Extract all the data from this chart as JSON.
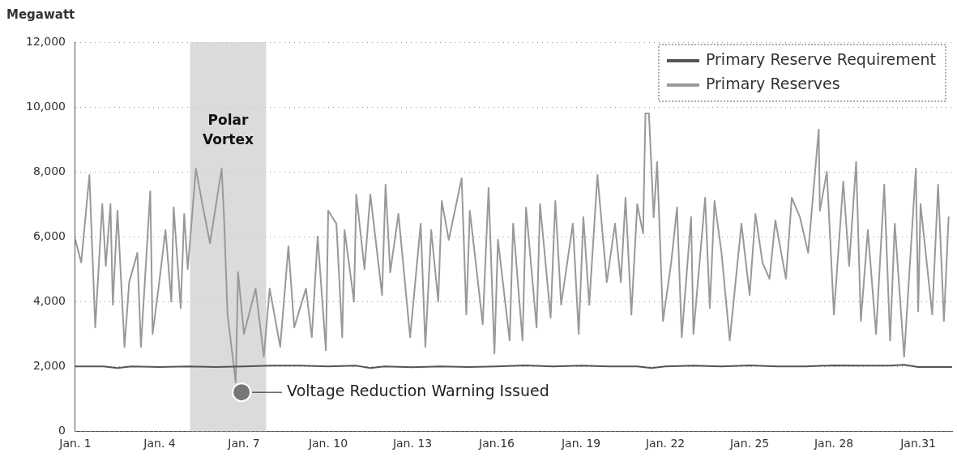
{
  "chart_data": {
    "type": "line",
    "ylabel": "Megawatt",
    "xlim": [
      "--01-01",
      "--02-01T05:00"
    ],
    "xticks": [
      {
        "value": "--01-01",
        "label": "Jan. 1"
      },
      {
        "value": "--01-04",
        "label": "Jan. 4"
      },
      {
        "value": "--01-07",
        "label": "Jan. 7"
      },
      {
        "value": "--01-10",
        "label": "Jan. 10"
      },
      {
        "value": "--01-13",
        "label": "Jan. 13"
      },
      {
        "value": "--01-16",
        "label": "Jan.16"
      },
      {
        "value": "--01-19",
        "label": "Jan. 19"
      },
      {
        "value": "--01-22",
        "label": "Jan. 22"
      },
      {
        "value": "--01-25",
        "label": "Jan. 25"
      },
      {
        "value": "--01-28",
        "label": "Jan. 28"
      },
      {
        "value": "--01-31",
        "label": "Jan.31"
      }
    ],
    "ylim": [
      0,
      12000
    ],
    "yticks": [
      0,
      {
        "value": 2000,
        "label": "2,000"
      },
      {
        "value": 4000,
        "label": "4,000"
      },
      {
        "value": 6000,
        "label": "6,000"
      },
      {
        "value": 8000,
        "label": "8,000"
      },
      {
        "value": 10000,
        "label": "10,000"
      },
      {
        "value": 12000,
        "label": "12,000"
      }
    ],
    "grid": "y",
    "legend": "top right",
    "line_style": "solid",
    "series": [
      {
        "name": "Primary Reserve Requirement",
        "color": "#555555",
        "x": [
          "--01-01",
          "--01-02",
          "--01-02T12:00",
          "--01-03",
          "--01-04",
          "--01-05",
          "--01-06",
          "--01-07",
          "--01-08",
          "--01-09",
          "--01-10",
          "--01-11",
          "--01-11T12:00",
          "--01-12",
          "--01-13",
          "--01-14",
          "--01-15",
          "--01-16",
          "--01-17",
          "--01-18",
          "--01-19",
          "--01-20",
          "--01-21",
          "--01-21T12:00",
          "--01-22",
          "--01-23",
          "--01-24",
          "--01-25",
          "--01-26",
          "--01-27",
          "--01-28",
          "--01-29",
          "--01-30",
          "--01-30T12:00",
          "--01-31",
          "--02-01T05:00"
        ],
        "values": [
          2000,
          2000,
          1950,
          2000,
          1980,
          2000,
          1980,
          2000,
          2020,
          2020,
          2000,
          2020,
          1950,
          2000,
          1970,
          2000,
          1980,
          2000,
          2030,
          2000,
          2020,
          2000,
          2000,
          1950,
          2000,
          2020,
          2000,
          2030,
          2000,
          2000,
          2030,
          2020,
          2020,
          2050,
          1980,
          1980
        ]
      },
      {
        "name": "Primary Reserves",
        "color": "#999999",
        "x": [
          "--01-01T00:00",
          "--01-01T05:00",
          "--01-01T12:00",
          "--01-01T17:00",
          "--01-01T23:00",
          "--01-02T02:00",
          "--01-02T06:00",
          "--01-02T08:00",
          "--01-02T12:00",
          "--01-02T18:00",
          "--01-02T22:00",
          "--01-03T05:00",
          "--01-03T08:00",
          "--01-03T16:00",
          "--01-03T18:00",
          "--01-03T23:00",
          "--01-04T05:00",
          "--01-04T10:00",
          "--01-04T12:00",
          "--01-04T18:00",
          "--01-04T21:00",
          "--01-05T00:00",
          "--01-05T07:00",
          "--01-05T12:00",
          "--01-05T19:00",
          "--01-06T05:00",
          "--01-06T07:00",
          "--01-06T10:00",
          "--01-06T17:00",
          "--01-06T19:00",
          "--01-07T00:00",
          "--01-07T10:00",
          "--01-07T17:00",
          "--01-07T22:00",
          "--01-08T07:00",
          "--01-08T14:00",
          "--01-08T19:00",
          "--01-09T05:00",
          "--01-09T10:00",
          "--01-09T15:00",
          "--01-09T22:00",
          "--01-10T00:00",
          "--01-10T07:00",
          "--01-10T12:00",
          "--01-10T14:00",
          "--01-10T22:00",
          "--01-11T00:00",
          "--01-11T07:00",
          "--01-11T12:00",
          "--01-11T22:00",
          "--01-12T01:00",
          "--01-12T05:00",
          "--01-12T12:00",
          "--01-12T22:00",
          "--01-13T07:00",
          "--01-13T11:00",
          "--01-13T16:00",
          "--01-13T22:00",
          "--01-14T01:00",
          "--01-14T07:00",
          "--01-14T18:00",
          "--01-14T22:00",
          "--01-15T01:00",
          "--01-15T12:00",
          "--01-15T17:00",
          "--01-15T22:00",
          "--01-16T01:00",
          "--01-16T11:00",
          "--01-16T14:00",
          "--01-16T22:00",
          "--01-17T01:00",
          "--01-17T10:00",
          "--01-17T13:00",
          "--01-17T22:00",
          "--01-18T02:00",
          "--01-18T07:00",
          "--01-18T17:00",
          "--01-18T22:00",
          "--01-19T02:00",
          "--01-19T07:00",
          "--01-19T14:00",
          "--01-19T22:00",
          "--01-20T05:00",
          "--01-20T10:00",
          "--01-20T14:00",
          "--01-20T19:00",
          "--01-21T00:00",
          "--01-21T05:00",
          "--01-21T07:00",
          "--01-21T10:00",
          "--01-21T14:00",
          "--01-21T17:00",
          "--01-21T22:00",
          "--01-22T05:00",
          "--01-22T10:00",
          "--01-22T14:00",
          "--01-22T22:00",
          "--01-23T00:00",
          "--01-23T10:00",
          "--01-23T14:00",
          "--01-23T18:00",
          "--01-24T00:00",
          "--01-24T07:00",
          "--01-24T17:00",
          "--01-25T00:00",
          "--01-25T05:00",
          "--01-25T11:00",
          "--01-25T17:00",
          "--01-25T22:00",
          "--01-26T07:00",
          "--01-26T12:00",
          "--01-26T19:00",
          "--01-27T02:00",
          "--01-27T11:00",
          "--01-27T12:00",
          "--01-27T18:00",
          "--01-28T00:00",
          "--01-28T08:00",
          "--01-28T13:00",
          "--01-28T19:00",
          "--01-28T23:00",
          "--01-29T05:00",
          "--01-29T12:00",
          "--01-29T19:00",
          "--01-30T00:00",
          "--01-30T04:00",
          "--01-30T12:00",
          "--01-30T22:00",
          "--01-31T00:00",
          "--01-31T02:00",
          "--01-31T12:00",
          "--01-31T17:00",
          "--01-31T22:00",
          "--02-01T02:00"
        ],
        "values": [
          5900,
          5200,
          7900,
          3200,
          7000,
          5100,
          7000,
          3900,
          6800,
          2600,
          4600,
          5500,
          2600,
          7400,
          3000,
          4400,
          6200,
          4000,
          6900,
          3800,
          6700,
          5000,
          8100,
          7100,
          5800,
          8100,
          6600,
          3600,
          1500,
          4900,
          3000,
          4400,
          2300,
          4400,
          2600,
          5700,
          3200,
          4400,
          2900,
          6000,
          2500,
          6800,
          6400,
          2900,
          6200,
          4000,
          7300,
          5000,
          7300,
          4200,
          7600,
          4900,
          6700,
          2900,
          6400,
          2600,
          6200,
          4000,
          7100,
          5900,
          7800,
          3600,
          6800,
          3300,
          7500,
          2400,
          5900,
          2800,
          6400,
          2800,
          6900,
          3200,
          7000,
          3500,
          7100,
          3900,
          6400,
          3000,
          6600,
          3900,
          7900,
          4600,
          6400,
          4600,
          7200,
          3600,
          7000,
          6100,
          9800,
          9800,
          6600,
          8300,
          3400,
          5200,
          6900,
          2900,
          6600,
          3000,
          7200,
          3800,
          7100,
          5500,
          2800,
          6400,
          4200,
          6700,
          5200,
          4700,
          6500,
          4700,
          7200,
          6600,
          5500,
          9300,
          6800,
          8000,
          3600,
          7700,
          5100,
          8300,
          3400,
          6200,
          3000,
          7600,
          2800,
          6400,
          2300,
          8100,
          3700,
          7000,
          3600,
          7600,
          3400,
          6600
        ]
      }
    ],
    "bands": [
      {
        "axis": "x",
        "from": "--01-05T02:00",
        "to": "--01-07T19:00",
        "label": "Polar Vortex",
        "color": "#cccccc"
      }
    ],
    "annotations": [
      {
        "text": "Voltage Reduction Warning Issued",
        "x": "--01-06T22:00",
        "y": 1200
      }
    ]
  }
}
